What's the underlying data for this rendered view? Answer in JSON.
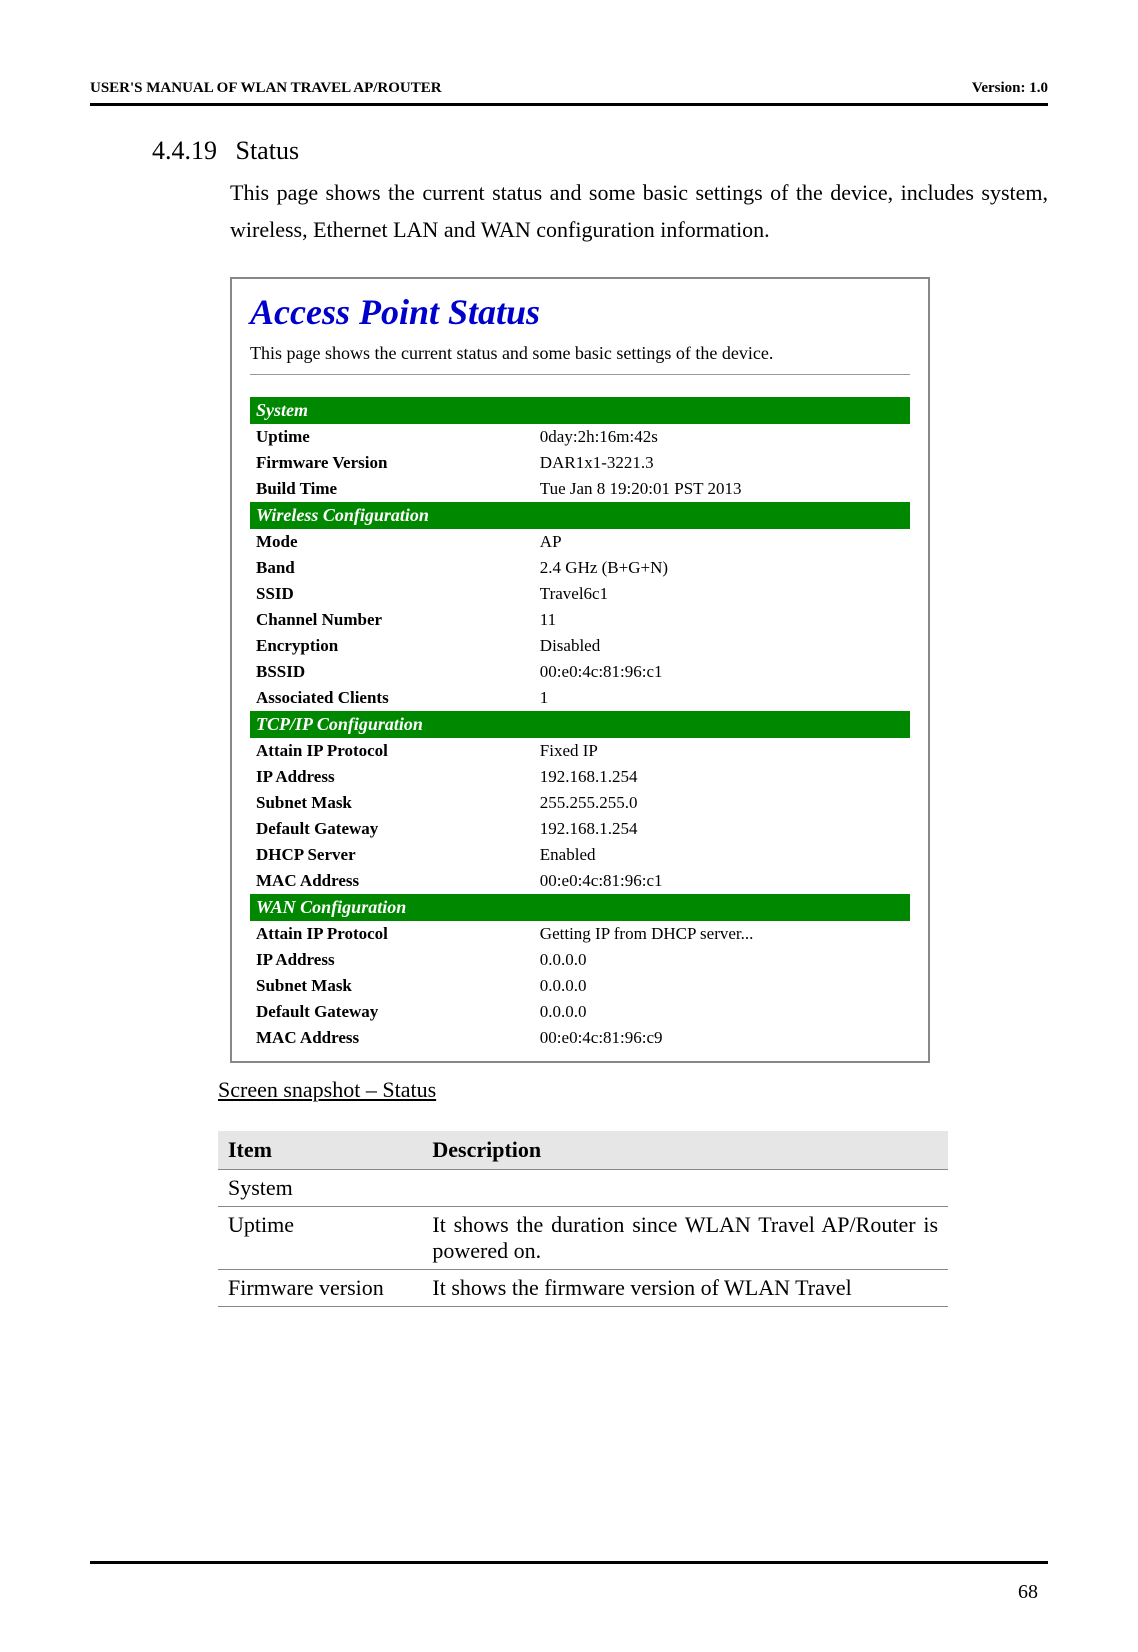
{
  "header": {
    "left": "USER'S MANUAL OF WLAN TRAVEL AP/ROUTER",
    "right": "Version: 1.0"
  },
  "section": {
    "number": "4.4.19",
    "title": "Status",
    "body": "This page shows the current status and some basic settings of the device, includes system, wireless, Ethernet LAN and WAN configuration information."
  },
  "screenshot": {
    "title": "Access Point Status",
    "desc": "This page shows the current status and some basic settings of the device.",
    "title_color": "#0000cc",
    "section_bg": "#008800",
    "section_fg": "#ffffff",
    "sections": [
      {
        "header": "System",
        "rows": [
          {
            "label": "Uptime",
            "value": "0day:2h:16m:42s"
          },
          {
            "label": "Firmware Version",
            "value": "DAR1x1-3221.3"
          },
          {
            "label": "Build Time",
            "value": "Tue Jan 8 19:20:01 PST 2013"
          }
        ]
      },
      {
        "header": "Wireless Configuration",
        "rows": [
          {
            "label": "Mode",
            "value": "AP"
          },
          {
            "label": "Band",
            "value": "2.4 GHz (B+G+N)"
          },
          {
            "label": "SSID",
            "value": "Travel6c1"
          },
          {
            "label": "Channel Number",
            "value": "11"
          },
          {
            "label": "Encryption",
            "value": "Disabled"
          },
          {
            "label": "BSSID",
            "value": "00:e0:4c:81:96:c1"
          },
          {
            "label": "Associated Clients",
            "value": "1"
          }
        ]
      },
      {
        "header": "TCP/IP Configuration",
        "rows": [
          {
            "label": "Attain IP Protocol",
            "value": "Fixed IP"
          },
          {
            "label": "IP Address",
            "value": "192.168.1.254"
          },
          {
            "label": "Subnet Mask",
            "value": "255.255.255.0"
          },
          {
            "label": "Default Gateway",
            "value": "192.168.1.254"
          },
          {
            "label": "DHCP Server",
            "value": "Enabled"
          },
          {
            "label": "MAC Address",
            "value": "00:e0:4c:81:96:c1"
          }
        ]
      },
      {
        "header": "WAN Configuration",
        "rows": [
          {
            "label": "Attain IP Protocol",
            "value": "Getting IP from DHCP server..."
          },
          {
            "label": "IP Address",
            "value": "0.0.0.0"
          },
          {
            "label": "Subnet Mask",
            "value": "0.0.0.0"
          },
          {
            "label": "Default Gateway",
            "value": "0.0.0.0"
          },
          {
            "label": "MAC Address",
            "value": "00:e0:4c:81:96:c9"
          }
        ]
      }
    ]
  },
  "caption": "Screen snapshot – Status",
  "desc_table": {
    "headers": {
      "item": "Item",
      "desc": "Description"
    },
    "rows": [
      {
        "item": "System",
        "desc": ""
      },
      {
        "item": "Uptime",
        "desc": "It shows the duration since WLAN Travel AP/Router is powered on."
      },
      {
        "item": "Firmware version",
        "desc": "It shows the firmware version of WLAN Travel"
      }
    ]
  },
  "page_number": "68"
}
